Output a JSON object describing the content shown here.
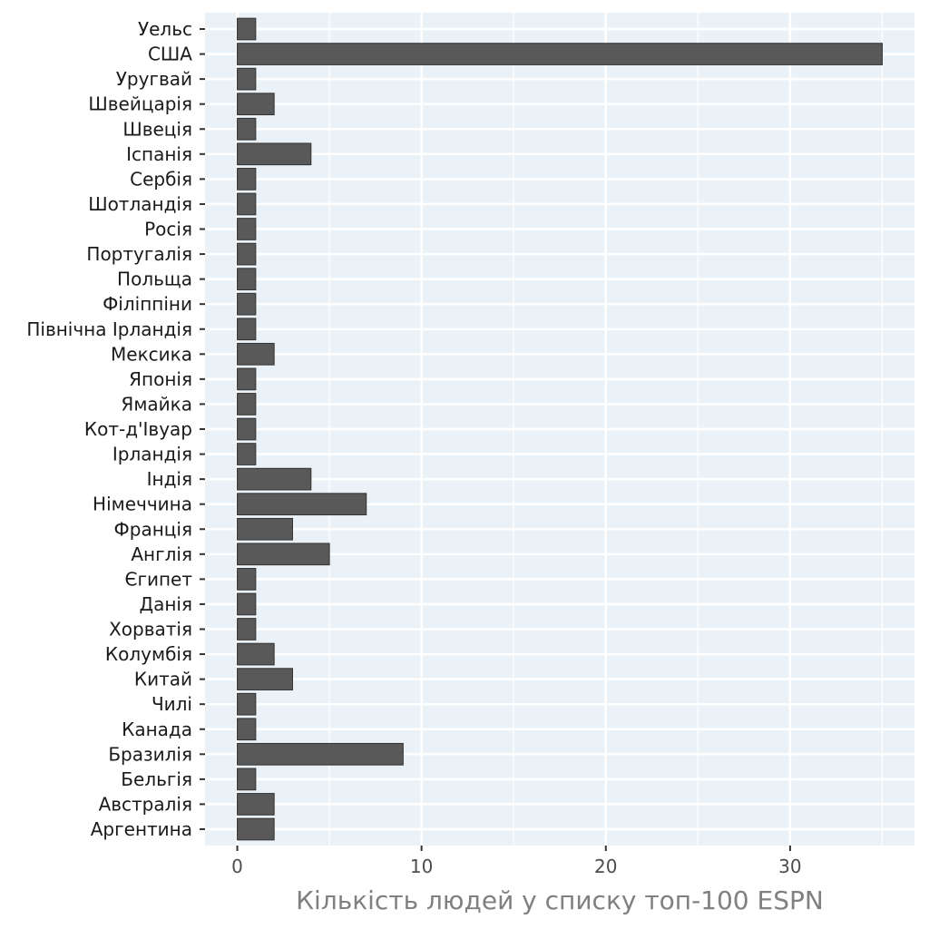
{
  "colors": {
    "panel_bg": "#ebf2f7",
    "grid": "#ffffff",
    "bar_fill": "#595959",
    "bar_stroke": "#333333",
    "tick": "#333333"
  },
  "chart_data": {
    "type": "bar",
    "orientation": "horizontal",
    "categories": [
      "Уельс",
      "США",
      "Уругвай",
      "Швейцарія",
      "Швеція",
      "Іспанія",
      "Сербія",
      "Шотландія",
      "Росія",
      "Португалія",
      "Польща",
      "Філіппіни",
      "Північна Ірландія",
      "Мексика",
      "Японія",
      "Ямайка",
      "Кот-д'Івуар",
      "Ірландія",
      "Індія",
      "Німеччина",
      "Франція",
      "Англія",
      "Єгипет",
      "Данія",
      "Хорватія",
      "Колумбія",
      "Китай",
      "Чилі",
      "Канада",
      "Бразилія",
      "Бельгія",
      "Австралія",
      "Аргентина"
    ],
    "values": [
      1,
      35,
      1,
      2,
      1,
      4,
      1,
      1,
      1,
      1,
      1,
      1,
      1,
      2,
      1,
      1,
      1,
      1,
      4,
      7,
      3,
      5,
      1,
      1,
      1,
      2,
      3,
      1,
      1,
      9,
      1,
      2,
      2
    ],
    "xlabel": "Кількість людей у списку топ-100 ESPN",
    "ylabel": "",
    "xlim": [
      -1.75,
      36.75
    ],
    "xticks": [
      0,
      10,
      20,
      30
    ],
    "xtick_labels": [
      "0",
      "10",
      "20",
      "30"
    ],
    "grid": true,
    "legend": "none"
  }
}
